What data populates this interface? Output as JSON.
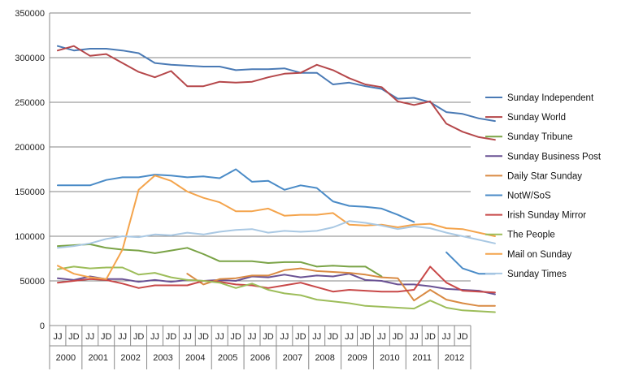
{
  "chart_data": {
    "type": "line",
    "x_period_labels": [
      "JJ",
      "JD"
    ],
    "x_year_labels": [
      "2000",
      "2001",
      "2002",
      "2003",
      "2004",
      "2005",
      "2006",
      "2007",
      "2008",
      "2009",
      "2010",
      "2011",
      "2012"
    ],
    "ylim": [
      0,
      350000
    ],
    "yticks": [
      0,
      50000,
      100000,
      150000,
      200000,
      250000,
      300000,
      350000
    ],
    "ytick_labels": [
      "0",
      "50000",
      "100000",
      "150000",
      "200000",
      "250000",
      "300000",
      "350000"
    ],
    "grid": "horizontal",
    "legend_position": "right",
    "series": [
      {
        "name": "Sunday Independent",
        "color": "#4a7ab5",
        "values": [
          313000,
          308000,
          310000,
          310000,
          308000,
          305000,
          294000,
          292000,
          291000,
          290000,
          290000,
          286000,
          287000,
          287000,
          288000,
          283000,
          283000,
          270000,
          272000,
          268000,
          265000,
          254000,
          255000,
          250000,
          239000,
          237000,
          232000,
          229000
        ]
      },
      {
        "name": "Sunday World",
        "color": "#b5474a",
        "values": [
          308000,
          313000,
          302000,
          304000,
          294000,
          284000,
          278000,
          285000,
          268000,
          268000,
          273000,
          272000,
          273000,
          278000,
          282000,
          283000,
          292000,
          286000,
          277000,
          270000,
          267000,
          251000,
          247000,
          251000,
          226000,
          217000,
          211000,
          208000
        ]
      },
      {
        "name": "Sunday Tribune",
        "color": "#7aa346",
        "values": [
          89000,
          90000,
          91000,
          87000,
          85000,
          84000,
          81000,
          84000,
          87000,
          80000,
          72000,
          72000,
          72000,
          70000,
          71000,
          71000,
          66000,
          67000,
          66000,
          66000,
          55000,
          null,
          null,
          null,
          null,
          null,
          null,
          null
        ]
      },
      {
        "name": "Sunday Business Post",
        "color": "#6a5294",
        "values": [
          53000,
          51000,
          55000,
          52000,
          52000,
          49000,
          51000,
          49000,
          51000,
          50000,
          51000,
          50000,
          55000,
          54000,
          57000,
          54000,
          56000,
          55000,
          58000,
          51000,
          50000,
          46000,
          46000,
          44000,
          41000,
          40000,
          39000,
          35000
        ]
      },
      {
        "name": "Daily Star Sunday",
        "color": "#d98a43",
        "values": [
          null,
          null,
          null,
          null,
          null,
          null,
          null,
          null,
          58000,
          46000,
          52000,
          53000,
          56000,
          56000,
          62000,
          64000,
          61000,
          60000,
          59000,
          57000,
          54000,
          53000,
          28000,
          40000,
          29000,
          25000,
          22000,
          22000
        ]
      },
      {
        "name": "NotW/SoS",
        "color": "#4a8bc7",
        "values": [
          157000,
          157000,
          157000,
          163000,
          166000,
          166000,
          169000,
          168000,
          166000,
          167000,
          165000,
          175000,
          161000,
          162000,
          152000,
          157000,
          154000,
          139000,
          134000,
          133000,
          131000,
          124000,
          116000,
          null,
          82000,
          64000,
          58000,
          58000
        ]
      },
      {
        "name": "Irish Sunday Mirror",
        "color": "#c84848",
        "values": [
          48000,
          50000,
          52000,
          51000,
          47000,
          42000,
          45000,
          45000,
          45000,
          50000,
          49000,
          46000,
          45000,
          42000,
          45000,
          48000,
          43000,
          38000,
          40000,
          39000,
          38000,
          38000,
          40000,
          66000,
          48000,
          39000,
          38000,
          37000
        ]
      },
      {
        "name": "The People",
        "color": "#9dbd5a",
        "values": [
          63000,
          66000,
          64000,
          65000,
          65000,
          57000,
          59000,
          54000,
          51000,
          50000,
          48000,
          42000,
          47000,
          40000,
          36000,
          34000,
          29000,
          27000,
          25000,
          22000,
          21000,
          20000,
          19000,
          28000,
          20000,
          17000,
          16000,
          15000
        ]
      },
      {
        "name": "Mail on Sunday",
        "color": "#f4a44c",
        "values": [
          67000,
          58000,
          54000,
          52000,
          85000,
          152000,
          168000,
          162000,
          150000,
          143000,
          138000,
          128000,
          128000,
          131000,
          123000,
          124000,
          124000,
          126000,
          113000,
          112000,
          113000,
          110000,
          113000,
          114000,
          109000,
          108000,
          104000,
          100000
        ]
      },
      {
        "name": "Sunday Times",
        "color": "#a9c8e3",
        "values": [
          87000,
          89000,
          92000,
          97000,
          100000,
          99000,
          102000,
          101000,
          104000,
          102000,
          105000,
          107000,
          108000,
          104000,
          106000,
          105000,
          106000,
          110000,
          117000,
          115000,
          112000,
          108000,
          111000,
          109000,
          104000,
          100000,
          96000,
          92000
        ]
      }
    ]
  }
}
